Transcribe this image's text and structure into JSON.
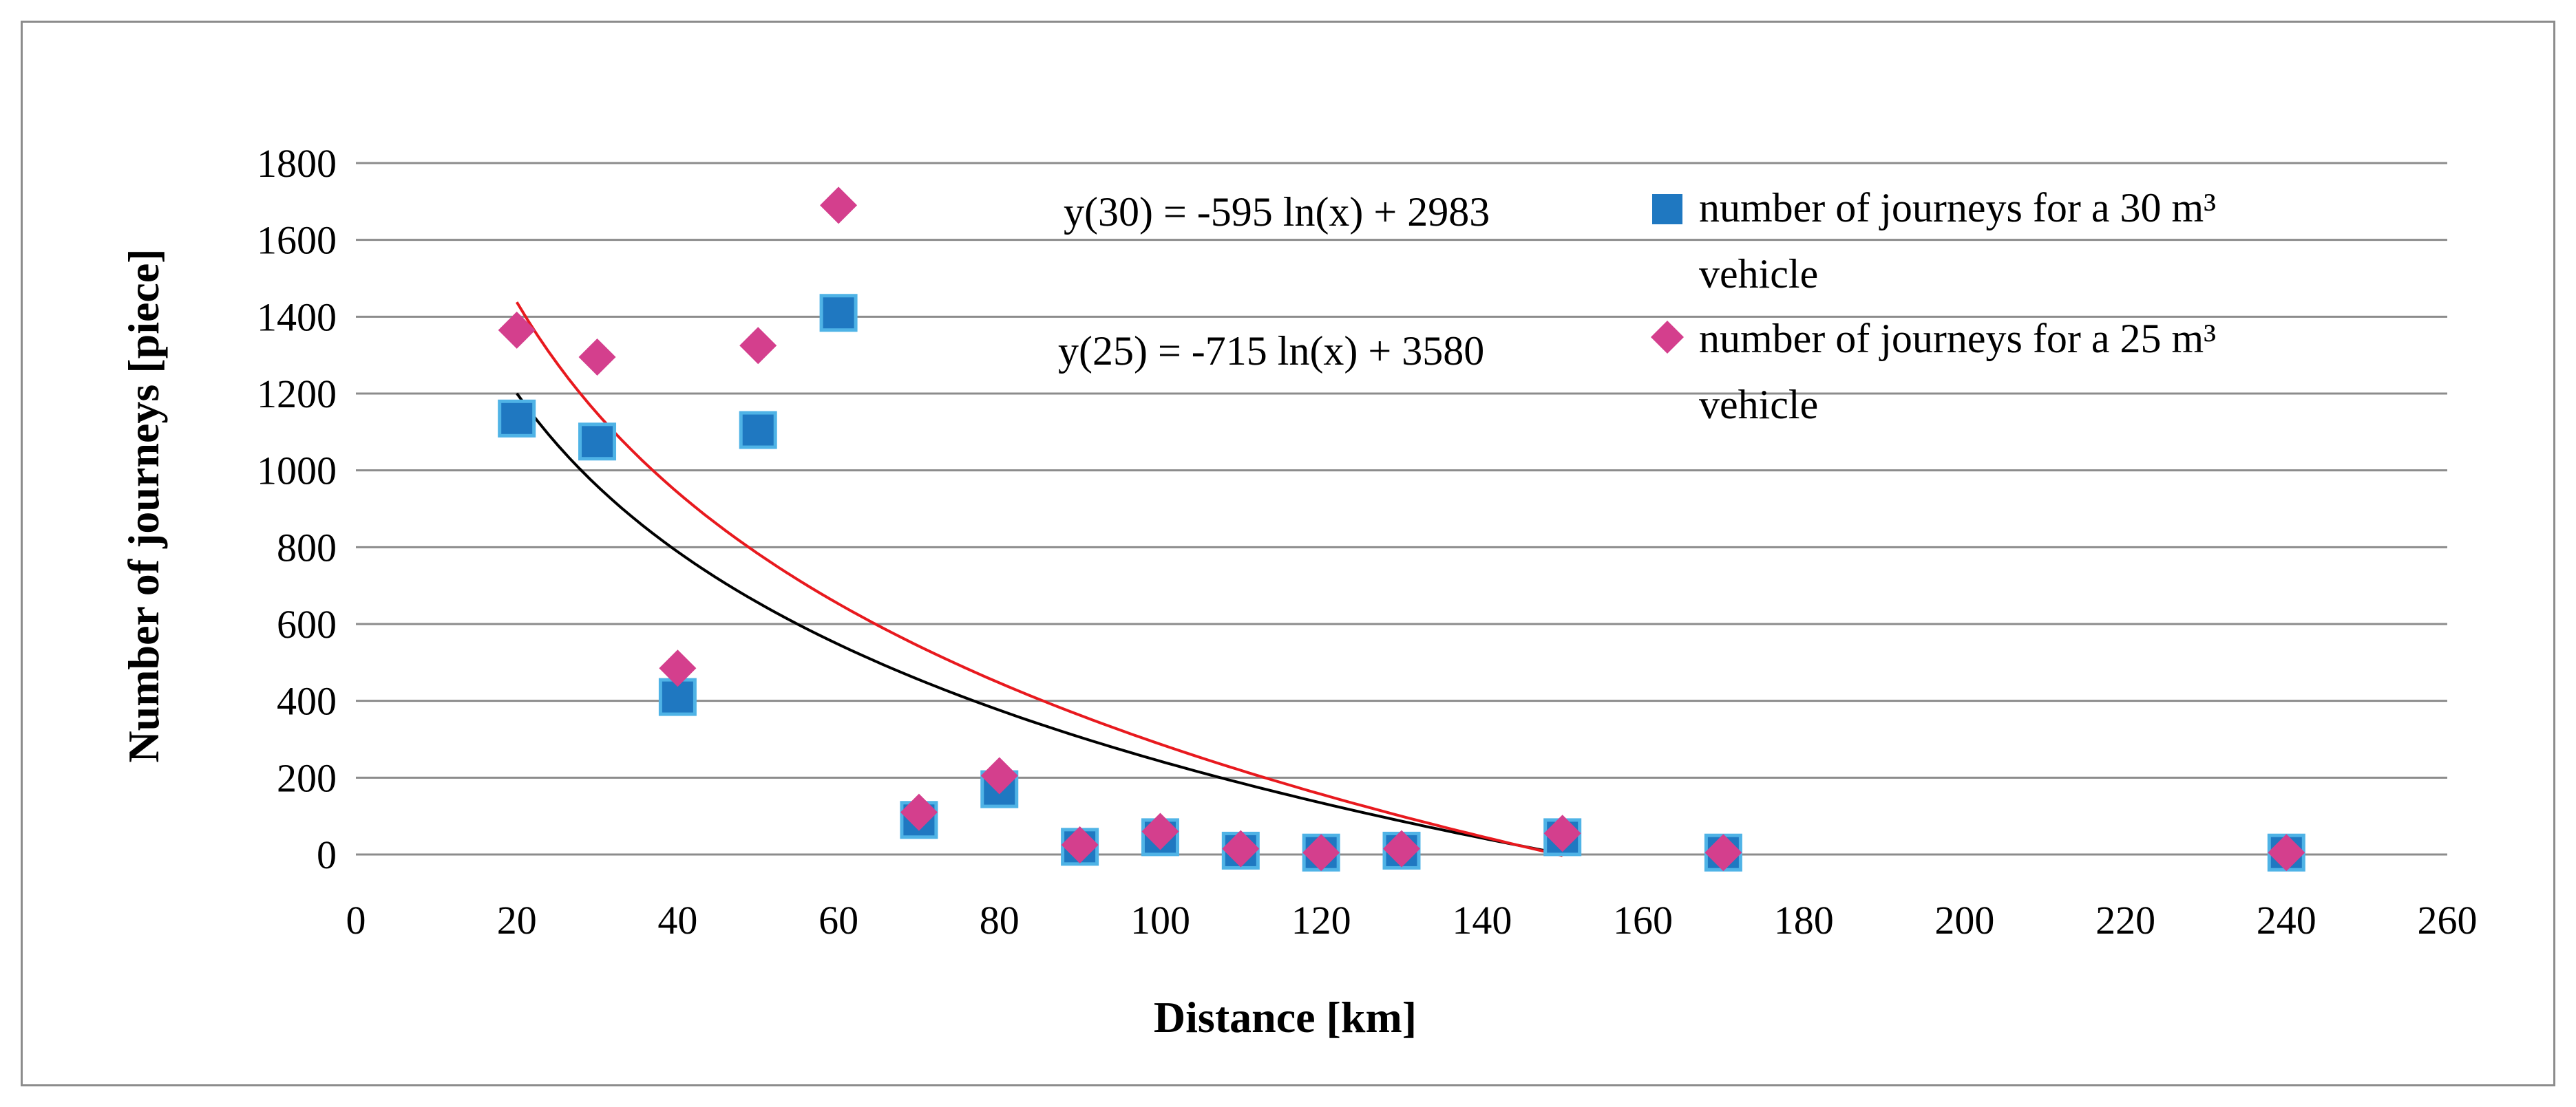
{
  "chart_data": {
    "type": "scatter",
    "title": "",
    "xlabel": "Distance [km]",
    "ylabel": "Number of journeys [piece]",
    "xlim": [
      0,
      260
    ],
    "ylim": [
      0,
      1800
    ],
    "x_ticks": [
      "0",
      "20",
      "40",
      "60",
      "80",
      "100",
      "120",
      "140",
      "160",
      "180",
      "200",
      "220",
      "240",
      "260"
    ],
    "y_ticks": [
      "0",
      "200",
      "400",
      "600",
      "800",
      "1000",
      "1200",
      "1400",
      "1600",
      "1800"
    ],
    "grid": "horizontal",
    "legend_position": "top-right",
    "series": [
      {
        "name": "number of  journeys for a 30 m³ vehicle",
        "legend_line1": "number of  journeys for a 30 m³",
        "legend_line2": "vehicle",
        "marker": "square",
        "color": "#1f78c1",
        "border_color": "#4fb3e6",
        "x": [
          20,
          30,
          40,
          50,
          60,
          70,
          80,
          90,
          100,
          110,
          120,
          130,
          150,
          170,
          240
        ],
        "y": [
          1135,
          1075,
          410,
          1105,
          1410,
          90,
          170,
          20,
          45,
          10,
          5,
          10,
          45,
          5,
          5
        ]
      },
      {
        "name": "number of  journeys for a 25 m³ vehicle",
        "legend_line1": "number of  journeys for a 25 m³",
        "legend_line2": "vehicle",
        "marker": "diamond",
        "color": "#d43f8d",
        "x": [
          20,
          30,
          40,
          50,
          60,
          70,
          80,
          90,
          100,
          110,
          120,
          130,
          150,
          170,
          240
        ],
        "y": [
          1365,
          1295,
          485,
          1325,
          1690,
          110,
          205,
          25,
          60,
          15,
          5,
          15,
          55,
          5,
          5
        ]
      }
    ],
    "trendlines": [
      {
        "label": "y(30) = -595 ln(x) + 2983",
        "a": -595,
        "b": 2983,
        "x_range": [
          20,
          150
        ],
        "color": "#000000"
      },
      {
        "label": "y(25) = -715 ln(x) + 3580",
        "a": -715,
        "b": 3580,
        "x_range": [
          20,
          150
        ],
        "color": "#e8191e"
      }
    ]
  }
}
